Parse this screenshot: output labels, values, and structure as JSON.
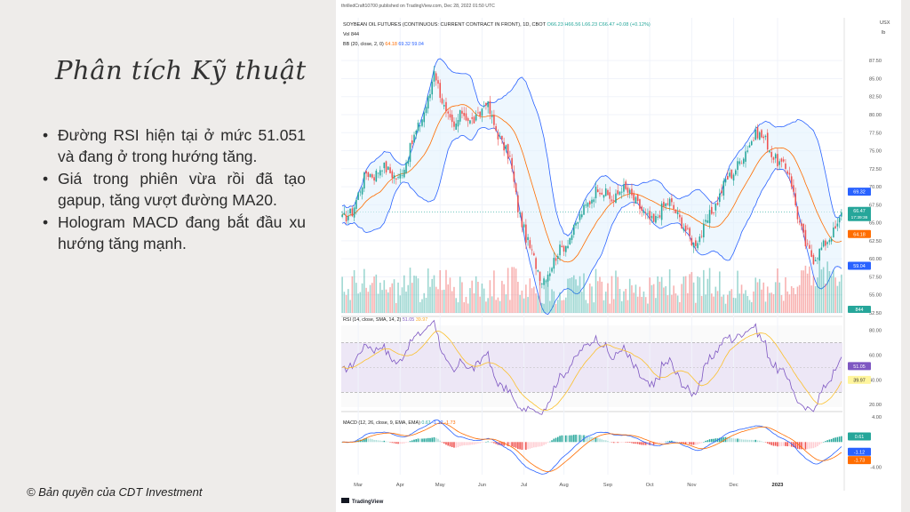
{
  "slide": {
    "title": "Phân tích Kỹ thuật",
    "bullets": [
      "Đường RSI hiện tại ở mức 51.051 và đang ở trong hướng tăng.",
      "Giá trong phiên vừa rồi đã tạo gapup, tăng vượt đường MA20.",
      "Hologram MACD đang bắt đầu xu hướng tăng mạnh."
    ],
    "copyright": "© Bản quyền của CDT Investment"
  },
  "chart_data": {
    "type": "candlestick",
    "published": "thrilledCraft10700 published on TradingView.com, Dec 28, 2022 01:50 UTC",
    "title": "SOYBEAN OIL FUTURES (CONTINUOUS: CURRENT CONTRACT IN FRONT), 1D, CBOT",
    "ohlc_label": "O66.23 H66.56 L66.23 C66.47 +0.08 (+0.12%)",
    "vol_label": "Vol 844",
    "bb_label": "BB (20, close, 2, 0)",
    "bb_values": [
      "64.18",
      "69.32",
      "59.04"
    ],
    "unit_top": "USX",
    "unit_bottom": "lb",
    "price_ticks": [
      87.5,
      85.0,
      82.5,
      80.0,
      77.5,
      75.0,
      72.5,
      70.0,
      67.5,
      65.0,
      62.5,
      60.0,
      57.5,
      55.0,
      52.5
    ],
    "price_tick_labels": [
      "87.50",
      "85.00",
      "82.50",
      "80.00",
      "77.50",
      "75.00",
      "72.50",
      "70.00",
      "67.50",
      "65.00",
      "62.50",
      "60.00",
      "57.50",
      "55.00",
      "52.50"
    ],
    "price_ylim": [
      52.5,
      89
    ],
    "last_close": 66.47,
    "badges": {
      "bb_upper": "69.32",
      "close": "66.47",
      "countdown": "17:39:36",
      "bb_basis": "64.18",
      "bb_lower": "59.04",
      "volume": "844"
    },
    "key_points": [
      [
        0,
        65.5
      ],
      [
        5,
        66.5
      ],
      [
        8,
        69
      ],
      [
        12,
        72
      ],
      [
        16,
        71.5
      ],
      [
        20,
        73
      ],
      [
        24,
        72
      ],
      [
        28,
        71
      ],
      [
        32,
        73.5
      ],
      [
        36,
        77
      ],
      [
        40,
        79.5
      ],
      [
        44,
        83
      ],
      [
        46,
        86.5
      ],
      [
        48,
        84
      ],
      [
        52,
        80
      ],
      [
        56,
        78
      ],
      [
        60,
        80.5
      ],
      [
        64,
        79
      ],
      [
        68,
        79.5
      ],
      [
        72,
        82
      ],
      [
        76,
        78.5
      ],
      [
        80,
        76
      ],
      [
        84,
        74
      ],
      [
        88,
        67
      ],
      [
        92,
        63
      ],
      [
        96,
        60
      ],
      [
        100,
        57
      ],
      [
        104,
        58.5
      ],
      [
        108,
        61
      ],
      [
        112,
        62
      ],
      [
        116,
        64
      ],
      [
        120,
        66.5
      ],
      [
        124,
        68
      ],
      [
        128,
        70
      ],
      [
        132,
        69
      ],
      [
        136,
        68
      ],
      [
        140,
        70
      ],
      [
        144,
        69
      ],
      [
        148,
        67.5
      ],
      [
        152,
        66
      ],
      [
        156,
        65
      ],
      [
        160,
        67
      ],
      [
        164,
        68
      ],
      [
        168,
        66
      ],
      [
        172,
        64
      ],
      [
        176,
        62
      ],
      [
        180,
        63.5
      ],
      [
        184,
        66
      ],
      [
        188,
        68
      ],
      [
        192,
        71
      ],
      [
        196,
        72
      ],
      [
        200,
        74
      ],
      [
        204,
        76
      ],
      [
        208,
        77.5
      ],
      [
        212,
        76.5
      ],
      [
        216,
        74
      ],
      [
        220,
        73
      ],
      [
        224,
        72
      ],
      [
        228,
        66
      ],
      [
        232,
        62
      ],
      [
        236,
        60
      ],
      [
        240,
        61.5
      ],
      [
        244,
        63
      ],
      [
        248,
        64.5
      ],
      [
        250,
        66.47
      ]
    ],
    "rsi_label": "RSI (14, close, SMA, 14, 2)",
    "rsi_values_label": [
      "51.05",
      "39.97"
    ],
    "rsi_ticks": [
      80.0,
      60.0,
      40.0,
      20.0
    ],
    "rsi_tick_labels": [
      "80.00",
      "60.00",
      "40.00",
      "20.00"
    ],
    "rsi_ylim": [
      18,
      84
    ],
    "rsi_bands": [
      70,
      30
    ],
    "rsi_badges": {
      "rsi": "51.05",
      "rsi_ma": "39.97"
    },
    "macd_label": "MACD (12, 26, close, 9, EMA, EMA)",
    "macd_values_label": [
      "0.61",
      "-1.12",
      "-1.73"
    ],
    "macd_ticks": [
      4.0,
      -4.0
    ],
    "macd_tick_labels": [
      "4.00",
      "-4.00"
    ],
    "macd_ylim": [
      -4.6,
      4.4
    ],
    "macd_badges": {
      "hist": "0.61",
      "macd": "-1.12",
      "signal": "-1.73"
    },
    "x_ticks": [
      {
        "index": 8,
        "label": "Mar"
      },
      {
        "index": 29,
        "label": "Apr"
      },
      {
        "index": 49,
        "label": "May"
      },
      {
        "index": 70,
        "label": "Jun"
      },
      {
        "index": 91,
        "label": "Jul"
      },
      {
        "index": 111,
        "label": "Aug"
      },
      {
        "index": 133,
        "label": "Sep"
      },
      {
        "index": 154,
        "label": "Oct"
      },
      {
        "index": 175,
        "label": "Nov"
      },
      {
        "index": 196,
        "label": "Dec"
      },
      {
        "index": 218,
        "label": "2023"
      }
    ],
    "colors": {
      "up": "#26a69a",
      "down": "#ef5350",
      "bb_band": "#2962ff",
      "bb_basis": "#ff6d00",
      "bb_fill": "#e3f2fd",
      "rsi": "#7e57c2",
      "rsi_ma": "#fbc02d",
      "rsi_fill": "#ede7f6",
      "macd": "#2962ff",
      "signal": "#ff6d00"
    },
    "footer": "TradingView"
  }
}
